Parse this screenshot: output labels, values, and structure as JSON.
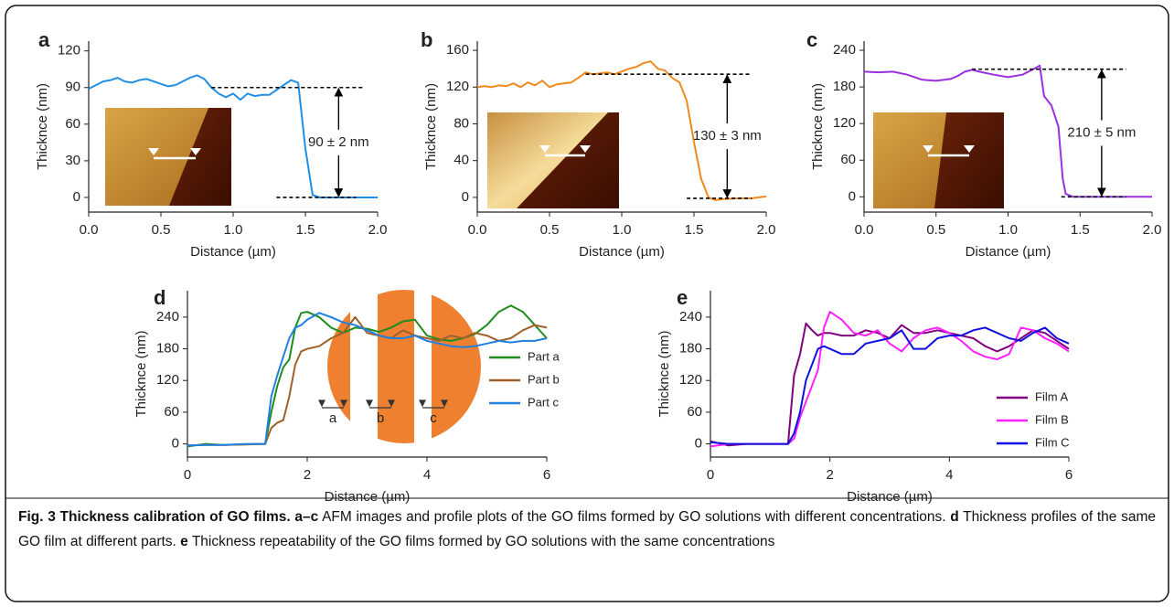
{
  "chart_data": [
    {
      "type": "line",
      "label": "a",
      "xlabel": "Distance (µm)",
      "ylabel": "Thicknce (nm)",
      "color": "#1f8fe6",
      "x": [
        0,
        0.05,
        0.1,
        0.15,
        0.2,
        0.25,
        0.3,
        0.35,
        0.4,
        0.45,
        0.5,
        0.55,
        0.6,
        0.65,
        0.7,
        0.75,
        0.8,
        0.85,
        0.9,
        0.95,
        1.0,
        1.05,
        1.1,
        1.15,
        1.2,
        1.25,
        1.3,
        1.35,
        1.4,
        1.45,
        1.5,
        1.55,
        1.6,
        2.0
      ],
      "values": [
        89,
        92,
        95,
        96,
        98,
        95,
        94,
        96,
        97,
        95,
        93,
        91,
        92,
        95,
        98,
        100,
        97,
        90,
        85,
        82,
        85,
        80,
        85,
        83,
        84,
        84,
        88,
        92,
        96,
        94,
        40,
        2,
        0,
        0
      ],
      "xlim": [
        0,
        2
      ],
      "xticks": [
        {
          "value": 0,
          "label": "0.0"
        },
        0.5,
        {
          "value": 1,
          "label": "1.0"
        },
        1.5,
        {
          "value": 2,
          "label": "2.0"
        }
      ],
      "ylim": [
        -12,
        128
      ],
      "yticks": [
        0,
        30,
        60,
        90,
        120
      ],
      "annotation": {
        "text": "90 ± 2 nm",
        "upper": 90,
        "lower": 0,
        "upper_x": [
          0.85,
          1.9
        ],
        "lower_x": [
          1.3,
          1.85
        ],
        "arrow_x": 1.73
      }
    },
    {
      "type": "line",
      "label": "b",
      "xlabel": "Distance (µm)",
      "ylabel": "Thicknce (nm)",
      "color": "#f08a1c",
      "x": [
        0,
        0.05,
        0.1,
        0.15,
        0.2,
        0.25,
        0.3,
        0.35,
        0.4,
        0.45,
        0.5,
        0.55,
        0.6,
        0.65,
        0.7,
        0.75,
        0.8,
        0.85,
        0.9,
        0.95,
        1.0,
        1.05,
        1.1,
        1.15,
        1.2,
        1.25,
        1.3,
        1.35,
        1.4,
        1.45,
        1.5,
        1.55,
        1.6,
        1.65,
        1.7,
        1.8,
        1.9,
        2.0
      ],
      "values": [
        120,
        121,
        120,
        122,
        121,
        124,
        120,
        125,
        122,
        127,
        120,
        123,
        124,
        125,
        130,
        136,
        134,
        135,
        136,
        134,
        137,
        140,
        142,
        146,
        148,
        140,
        138,
        130,
        125,
        105,
        60,
        20,
        0,
        -3,
        -2,
        -1,
        -1,
        1
      ],
      "xlim": [
        0,
        2
      ],
      "xticks": [
        {
          "value": 0,
          "label": "0.0"
        },
        0.5,
        {
          "value": 1,
          "label": "1.0"
        },
        1.5,
        {
          "value": 2,
          "label": "2.0"
        }
      ],
      "ylim": [
        -16,
        170
      ],
      "yticks": [
        0,
        40,
        80,
        120,
        160
      ],
      "annotation": {
        "text": "130 ± 3 nm",
        "upper": 134,
        "lower": -1,
        "upper_x": [
          0.75,
          1.9
        ],
        "lower_x": [
          1.45,
          1.9
        ],
        "arrow_x": 1.73
      }
    },
    {
      "type": "line",
      "label": "c",
      "xlabel": "Distance (µm)",
      "ylabel": "Thicknce (nm)",
      "color": "#9b30e0",
      "x": [
        0,
        0.1,
        0.2,
        0.3,
        0.4,
        0.5,
        0.6,
        0.65,
        0.7,
        0.75,
        0.8,
        0.9,
        1.0,
        1.1,
        1.15,
        1.2,
        1.22,
        1.25,
        1.3,
        1.35,
        1.38,
        1.4,
        1.45,
        2.0
      ],
      "values": [
        205,
        204,
        205,
        200,
        192,
        190,
        193,
        198,
        205,
        208,
        205,
        200,
        196,
        200,
        206,
        212,
        215,
        165,
        150,
        115,
        30,
        5,
        0,
        0
      ],
      "xlim": [
        0,
        2
      ],
      "xticks": [
        {
          "value": 0,
          "label": "0.0"
        },
        0.5,
        {
          "value": 1,
          "label": "1.0"
        },
        1.5,
        {
          "value": 2,
          "label": "2.0"
        }
      ],
      "ylim": [
        -25,
        255
      ],
      "yticks": [
        0,
        60,
        120,
        180,
        240
      ],
      "annotation": {
        "text": "210 ± 5 nm",
        "upper": 209,
        "lower": 0,
        "upper_x": [
          0.75,
          1.82
        ],
        "lower_x": [
          1.37,
          1.82
        ],
        "arrow_x": 1.65
      }
    },
    {
      "type": "line",
      "label": "d",
      "xlabel": "Distance (µm)",
      "ylabel": "Thicknce (nm)",
      "legend": "right",
      "x": [
        0,
        0.3,
        0.6,
        1.0,
        1.3,
        1.4,
        1.5,
        1.6,
        1.7,
        1.8,
        1.9,
        2.0,
        2.2,
        2.4,
        2.6,
        2.8,
        3.0,
        3.2,
        3.4,
        3.6,
        3.8,
        4.0,
        4.2,
        4.4,
        4.6,
        4.8,
        5.0,
        5.2,
        5.4,
        5.6,
        5.8,
        6.0
      ],
      "series": [
        {
          "name": "Part a",
          "color": "#1e8c1e",
          "values": [
            -5,
            0,
            -2,
            -1,
            0,
            60,
            110,
            145,
            160,
            220,
            248,
            250,
            240,
            220,
            210,
            220,
            218,
            212,
            220,
            232,
            235,
            205,
            198,
            195,
            200,
            208,
            225,
            250,
            262,
            250,
            225,
            200
          ]
        },
        {
          "name": "Part b",
          "color": "#a0602a",
          "values": [
            -3,
            -2,
            -2,
            -1,
            0,
            30,
            40,
            45,
            90,
            150,
            175,
            180,
            185,
            200,
            210,
            240,
            210,
            205,
            200,
            215,
            205,
            200,
            195,
            205,
            200,
            210,
            205,
            195,
            200,
            215,
            225,
            220
          ]
        },
        {
          "name": "Part c",
          "color": "#2080e0",
          "values": [
            -3,
            -2,
            -2,
            0,
            0,
            90,
            130,
            165,
            200,
            220,
            225,
            235,
            248,
            240,
            230,
            225,
            215,
            205,
            200,
            200,
            205,
            195,
            190,
            185,
            183,
            185,
            190,
            195,
            192,
            195,
            195,
            200
          ]
        }
      ],
      "xlim": [
        0,
        6
      ],
      "xticks": [
        0,
        2,
        4,
        6
      ],
      "ylim": [
        -25,
        290
      ],
      "yticks": [
        0,
        60,
        120,
        180,
        240
      ],
      "inset_labels": [
        "a",
        "b",
        "c"
      ]
    },
    {
      "type": "line",
      "label": "e",
      "xlabel": "Distance (µm)",
      "ylabel": "Thicknce (nm)",
      "legend": "lower right",
      "x": [
        0,
        0.3,
        0.6,
        1.0,
        1.3,
        1.4,
        1.5,
        1.6,
        1.7,
        1.8,
        1.9,
        2.0,
        2.2,
        2.4,
        2.6,
        2.8,
        3.0,
        3.2,
        3.4,
        3.6,
        3.8,
        4.0,
        4.2,
        4.4,
        4.6,
        4.8,
        5.0,
        5.2,
        5.4,
        5.6,
        5.8,
        6.0
      ],
      "series": [
        {
          "name": "Film A",
          "color": "#800080",
          "values": [
            5,
            -3,
            0,
            0,
            0,
            130,
            170,
            228,
            215,
            205,
            210,
            210,
            205,
            205,
            215,
            210,
            200,
            225,
            210,
            210,
            215,
            210,
            205,
            200,
            185,
            175,
            185,
            200,
            215,
            210,
            195,
            180
          ]
        },
        {
          "name": "Film B",
          "color": "#ff20ff",
          "values": [
            -5,
            0,
            0,
            0,
            0,
            10,
            50,
            80,
            110,
            140,
            220,
            250,
            235,
            210,
            205,
            215,
            190,
            175,
            200,
            215,
            220,
            210,
            195,
            175,
            165,
            160,
            170,
            220,
            215,
            200,
            190,
            175
          ]
        },
        {
          "name": "Film C",
          "color": "#1010e0",
          "values": [
            3,
            0,
            0,
            0,
            0,
            20,
            60,
            120,
            150,
            180,
            185,
            180,
            170,
            170,
            190,
            195,
            200,
            215,
            180,
            180,
            200,
            205,
            205,
            215,
            220,
            210,
            200,
            195,
            210,
            220,
            200,
            190
          ]
        }
      ],
      "xlim": [
        0,
        6
      ],
      "xticks": [
        0,
        2,
        4,
        6
      ],
      "ylim": [
        -25,
        290
      ],
      "yticks": [
        0,
        60,
        120,
        180,
        240
      ]
    }
  ],
  "caption": [
    {
      "text": "Fig. 3 Thickness calibration of GO films. a–c",
      "bold": true
    },
    {
      "text": " AFM images and profile plots of the GO films formed by GO solutions with different concentrations. ",
      "bold": false
    },
    {
      "text": "d",
      "bold": true
    },
    {
      "text": " Thickness profiles of the same GO film at different parts. ",
      "bold": false
    },
    {
      "text": "e",
      "bold": true
    },
    {
      "text": " Thickness repeatability of the GO films formed by GO solutions with the same concentrations",
      "bold": false
    }
  ]
}
